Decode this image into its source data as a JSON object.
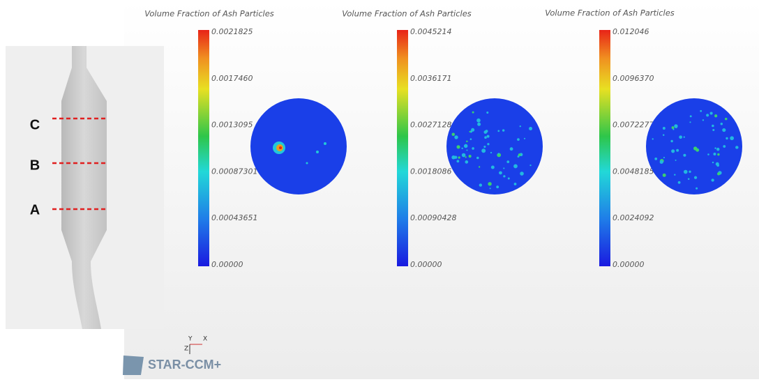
{
  "sections": [
    {
      "label": "C"
    },
    {
      "label": "B"
    },
    {
      "label": "A"
    }
  ],
  "panels": [
    {
      "title": "Volume Fraction of Ash Particles",
      "scale_labels": [
        "0.0021825",
        "0.0017460",
        "0.0013095",
        "0.00087301",
        "0.00043651",
        "0.00000"
      ]
    },
    {
      "title": "Volume Fraction of Ash Particles",
      "scale_labels": [
        "0.0045214",
        "0.0036171",
        "0.0027128",
        "0.0018086",
        "0.00090428",
        "0.00000"
      ]
    },
    {
      "title": "Volume Fraction of Ash Particles",
      "scale_labels": [
        "0.012046",
        "0.0096370",
        "0.0072277",
        "0.0048185",
        "0.0024092",
        "0.00000"
      ]
    }
  ],
  "axes": {
    "y": "Y",
    "x": "X",
    "z": "Z"
  },
  "logo": "STAR-CCM+"
}
